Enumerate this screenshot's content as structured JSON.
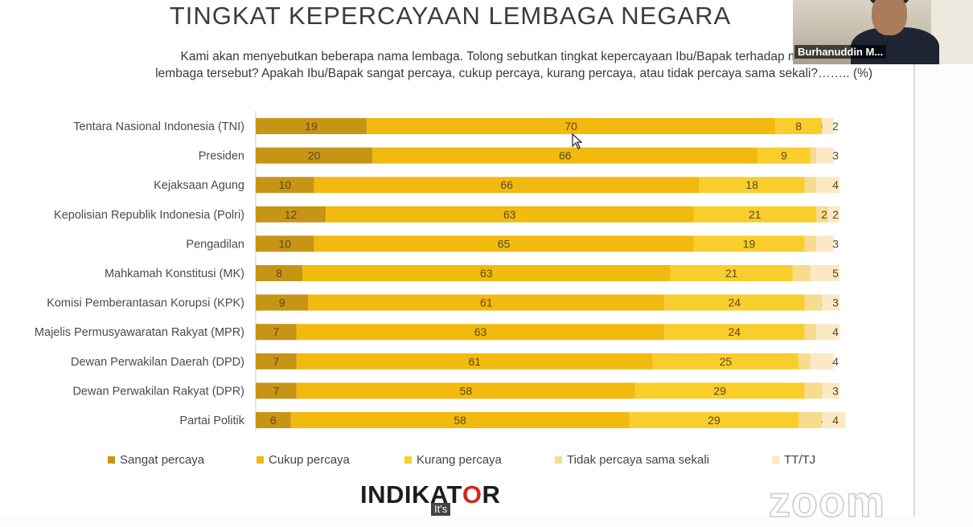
{
  "slide": {
    "title": "TINGKAT KEPERCAYAAN LEMBAGA NEGARA",
    "question_line1": "Kami akan menyebutkan beberapa nama lembaga. Tolong sebutkan tingkat kepercayaan Ibu/Bapak terhadap masing-masing",
    "question_line2": "lembaga tersebut? Apakah Ibu/Bapak sangat percaya, cukup percaya, kurang percaya, atau tidak percaya sama sekali?…….. (%)"
  },
  "chart_data": {
    "type": "bar",
    "orientation": "horizontal",
    "stacked": true,
    "categories": [
      "Tentara Nasional Indonesia (TNI)",
      "Presiden",
      "Kejaksaan Agung",
      "Kepolisian Republik Indonesia (Polri)",
      "Pengadilan",
      "Mahkamah Konstitusi (MK)",
      "Komisi Pemberantasan Korupsi (KPK)",
      "Majelis Permusyawaratan Rakyat (MPR)",
      "Dewan Perwakilan Daerah (DPD)",
      "Dewan Perwakilan Rakyat (DPR)",
      "Partai Politik"
    ],
    "series": [
      {
        "name": "Sangat percaya",
        "color": "#c79416",
        "values": [
          19,
          20,
          10,
          12,
          10,
          8,
          9,
          7,
          7,
          7,
          6
        ]
      },
      {
        "name": "Cukup percaya",
        "color": "#f2b90e",
        "values": [
          70,
          66,
          66,
          63,
          65,
          63,
          61,
          63,
          61,
          58,
          58
        ]
      },
      {
        "name": "Kurang percaya",
        "color": "#f9cd2c",
        "values": [
          8,
          9,
          18,
          21,
          19,
          21,
          24,
          24,
          25,
          29,
          29
        ]
      },
      {
        "name": "Tidak percaya sama sekali",
        "color": "#f6dc8c",
        "values": [
          0,
          1,
          2,
          2,
          2,
          3,
          3,
          2,
          2,
          3,
          4
        ]
      },
      {
        "name": "TT/TJ",
        "color": "#fbe9c4",
        "values": [
          2,
          3,
          4,
          2,
          3,
          5,
          3,
          4,
          4,
          3,
          4
        ]
      }
    ],
    "xlim": [
      0,
      100
    ],
    "unit": "%",
    "legend_position": "bottom",
    "grid": false
  },
  "branding": {
    "logo_text_a": "INDIKAT",
    "logo_text_o": "O",
    "logo_text_b": "R",
    "tagline": "It's",
    "zoom_watermark": "zoom"
  },
  "video": {
    "participant_name": "Burhanuddin M..."
  }
}
